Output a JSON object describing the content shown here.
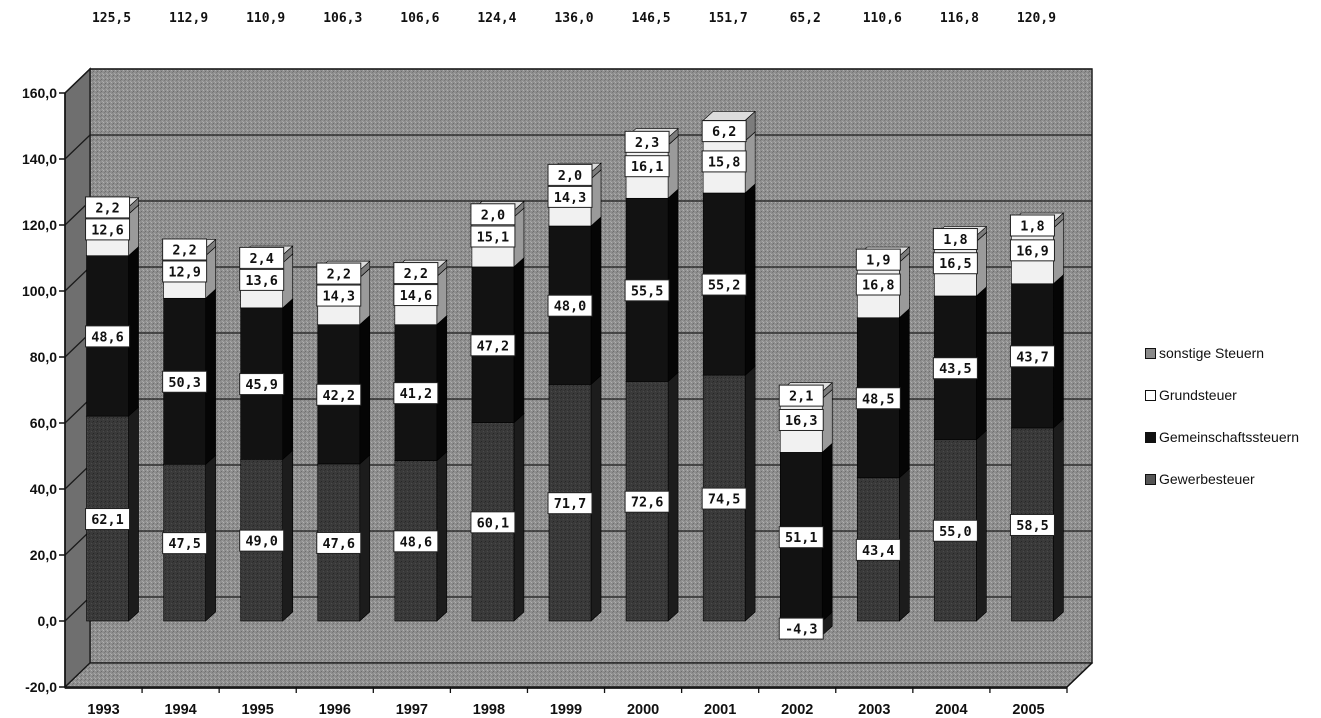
{
  "chart_data": {
    "type": "bar",
    "stacked": true,
    "three_d": true,
    "categories": [
      "1993",
      "1994",
      "1995",
      "1996",
      "1997",
      "1998",
      "1999",
      "2000",
      "2001",
      "2002",
      "2003",
      "2004",
      "2005"
    ],
    "totals": [
      "125,5",
      "112,9",
      "110,9",
      "106,3",
      "106,6",
      "124,4",
      "136,0",
      "146,5",
      "151,7",
      "65,2",
      "110,6",
      "116,8",
      "120,9"
    ],
    "series": [
      {
        "name": "Gewerbesteuer",
        "values": [
          62.1,
          47.5,
          49.0,
          47.6,
          48.6,
          60.1,
          71.7,
          72.6,
          74.5,
          -4.3,
          43.4,
          55.0,
          58.5
        ],
        "labels": [
          "62,1",
          "47,5",
          "49,0",
          "47,6",
          "48,6",
          "60,1",
          "71,7",
          "72,6",
          "74,5",
          "-4,3",
          "43,4",
          "55,0",
          "58,5"
        ]
      },
      {
        "name": "Gemeinschaftssteuern",
        "values": [
          48.6,
          50.3,
          45.9,
          42.2,
          41.2,
          47.2,
          48.0,
          55.5,
          55.2,
          51.1,
          48.5,
          43.5,
          43.7
        ],
        "labels": [
          "48,6",
          "50,3",
          "45,9",
          "42,2",
          "41,2",
          "47,2",
          "48,0",
          "55,5",
          "55,2",
          "51,1",
          "48,5",
          "43,5",
          "43,7"
        ]
      },
      {
        "name": "Grundsteuer",
        "values": [
          12.6,
          12.9,
          13.6,
          14.3,
          14.6,
          15.1,
          14.3,
          16.1,
          15.8,
          16.3,
          16.8,
          16.5,
          16.9
        ],
        "labels": [
          "12,6",
          "12,9",
          "13,6",
          "14,3",
          "14,6",
          "15,1",
          "14,3",
          "16,1",
          "15,8",
          "16,3",
          "16,8",
          "16,5",
          "16,9"
        ]
      },
      {
        "name": "sonstige Steuern",
        "values": [
          2.2,
          2.2,
          2.4,
          2.2,
          2.2,
          2.0,
          2.0,
          2.3,
          6.2,
          2.1,
          1.9,
          1.8,
          1.8
        ],
        "labels": [
          "2,2",
          "2,2",
          "2,4",
          "2,2",
          "2,2",
          "2,0",
          "2,0",
          "2,3",
          "6,2",
          "2,1",
          "1,9",
          "1,8",
          "1,8"
        ]
      }
    ],
    "ylim": [
      -20,
      160
    ],
    "yticks": [
      "-20,0",
      "0,0",
      "20,0",
      "40,0",
      "60,0",
      "80,0",
      "100,0",
      "120,0",
      "140,0",
      "160,0"
    ],
    "grid": true,
    "legend_position": "right",
    "legend_order": [
      "sonstige Steuern",
      "Grundsteuer",
      "Gemeinschaftssteuern",
      "Gewerbesteuer"
    ],
    "colors": {
      "Gewerbesteuer": "#2a2a2a",
      "Gemeinschaftssteuern": "#151515",
      "Grundsteuer": "#f4f4f4",
      "sonstige Steuern": "#9a9a9a",
      "wall": "#9c9c9c",
      "floor": "#7e7e7e"
    }
  }
}
